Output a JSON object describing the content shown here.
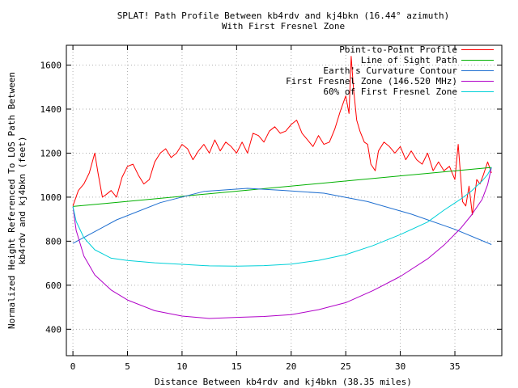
{
  "chart_data": {
    "type": "line",
    "title": "SPLAT! Path Profile Between kb4rdv and kj4bkn (16.44° azimuth)",
    "subtitle": "With First Fresnel Zone",
    "xlabel": "Distance Between kb4rdv and kj4bkn (38.35 miles)",
    "ylabel_lines": [
      "Normalized Height Referenced To LOS Path Between",
      "kb4rdv and kj4bkn (feet)"
    ],
    "xlim": [
      -0.6,
      39.3
    ],
    "ylim": [
      280,
      1690
    ],
    "xticks": [
      0,
      5,
      10,
      15,
      20,
      25,
      30,
      35
    ],
    "yticks": [
      400,
      600,
      800,
      1000,
      1200,
      1400,
      1600
    ],
    "grid": true,
    "legend_position": "top-right",
    "series": [
      {
        "name": "Point-to-Point Profile",
        "color": "#ff0000",
        "x": [
          0,
          0.5,
          1.0,
          1.5,
          2.0,
          2.3,
          2.7,
          3.0,
          3.5,
          4.0,
          4.5,
          5.0,
          5.5,
          6.0,
          6.5,
          7.0,
          7.5,
          8.0,
          8.5,
          9.0,
          9.5,
          10.0,
          10.5,
          11.0,
          11.5,
          12.0,
          12.5,
          13.0,
          13.5,
          14.0,
          14.5,
          15.0,
          15.5,
          16.0,
          16.5,
          17.0,
          17.5,
          18.0,
          18.5,
          19.0,
          19.5,
          20.0,
          20.5,
          21.0,
          21.5,
          22.0,
          22.5,
          23.0,
          23.5,
          24.0,
          24.5,
          25.0,
          25.3,
          25.5,
          25.7,
          26.0,
          26.3,
          26.7,
          27.0,
          27.3,
          27.7,
          28.0,
          28.5,
          29.0,
          29.5,
          30.0,
          30.5,
          31.0,
          31.5,
          32.0,
          32.5,
          33.0,
          33.5,
          34.0,
          34.5,
          35.0,
          35.3,
          35.7,
          36.0,
          36.3,
          36.6,
          37.0,
          37.3,
          37.6,
          38.0,
          38.35
        ],
        "values": [
          960,
          1030,
          1060,
          1110,
          1200,
          1110,
          1000,
          1010,
          1030,
          1000,
          1090,
          1140,
          1150,
          1100,
          1060,
          1080,
          1160,
          1200,
          1220,
          1180,
          1200,
          1240,
          1220,
          1170,
          1210,
          1240,
          1200,
          1260,
          1210,
          1250,
          1230,
          1200,
          1250,
          1200,
          1290,
          1280,
          1250,
          1300,
          1320,
          1290,
          1300,
          1330,
          1350,
          1290,
          1260,
          1230,
          1280,
          1240,
          1250,
          1310,
          1390,
          1460,
          1380,
          1640,
          1500,
          1350,
          1300,
          1250,
          1240,
          1150,
          1120,
          1210,
          1250,
          1230,
          1200,
          1230,
          1170,
          1210,
          1170,
          1150,
          1200,
          1120,
          1160,
          1120,
          1140,
          1080,
          1240,
          980,
          960,
          1050,
          920,
          1080,
          1060,
          1100,
          1160,
          1110
        ]
      },
      {
        "name": "Line of Sight Path",
        "color": "#00b000",
        "x": [
          0,
          38.35
        ],
        "values": [
          958,
          1135
        ]
      },
      {
        "name": "Earth's Curvature Contour",
        "color": "#1f6fd0",
        "x": [
          0,
          4,
          8,
          12,
          16,
          19.2,
          23,
          27,
          31,
          35,
          38.35
        ],
        "values": [
          790,
          897,
          975,
          1026,
          1040,
          1031,
          1018,
          980,
          923,
          854,
          785
        ]
      },
      {
        "name": "First Fresnel Zone (146.520 MHz)",
        "color": "#b000c8",
        "x": [
          0,
          0.3,
          1.0,
          2.0,
          3.5,
          5.0,
          7.5,
          10.0,
          12.5,
          15.0,
          17.5,
          20.0,
          22.5,
          25.0,
          27.5,
          30.0,
          32.5,
          34.0,
          35.5,
          36.5,
          37.5,
          38.0,
          38.35
        ],
        "values": [
          958,
          849,
          733,
          647,
          578,
          533,
          484,
          460,
          449,
          454,
          458,
          466,
          489,
          521,
          576,
          640,
          720,
          782,
          857,
          917,
          990,
          1057,
          1135
        ]
      },
      {
        "name": "60% of First Fresnel Zone",
        "color": "#00d0d8",
        "x": [
          0,
          0.3,
          1.0,
          2.0,
          3.5,
          5.0,
          7.5,
          10.0,
          12.5,
          15.0,
          17.5,
          20.0,
          22.5,
          25.0,
          27.5,
          30.0,
          32.5,
          34.0,
          35.5,
          36.5,
          37.5,
          38.0,
          38.35
        ],
        "values": [
          958,
          890,
          816,
          761,
          723,
          712,
          702,
          695,
          688,
          687,
          689,
          696,
          713,
          739,
          780,
          830,
          887,
          941,
          990,
          1027,
          1074,
          1103,
          1135
        ]
      }
    ]
  }
}
